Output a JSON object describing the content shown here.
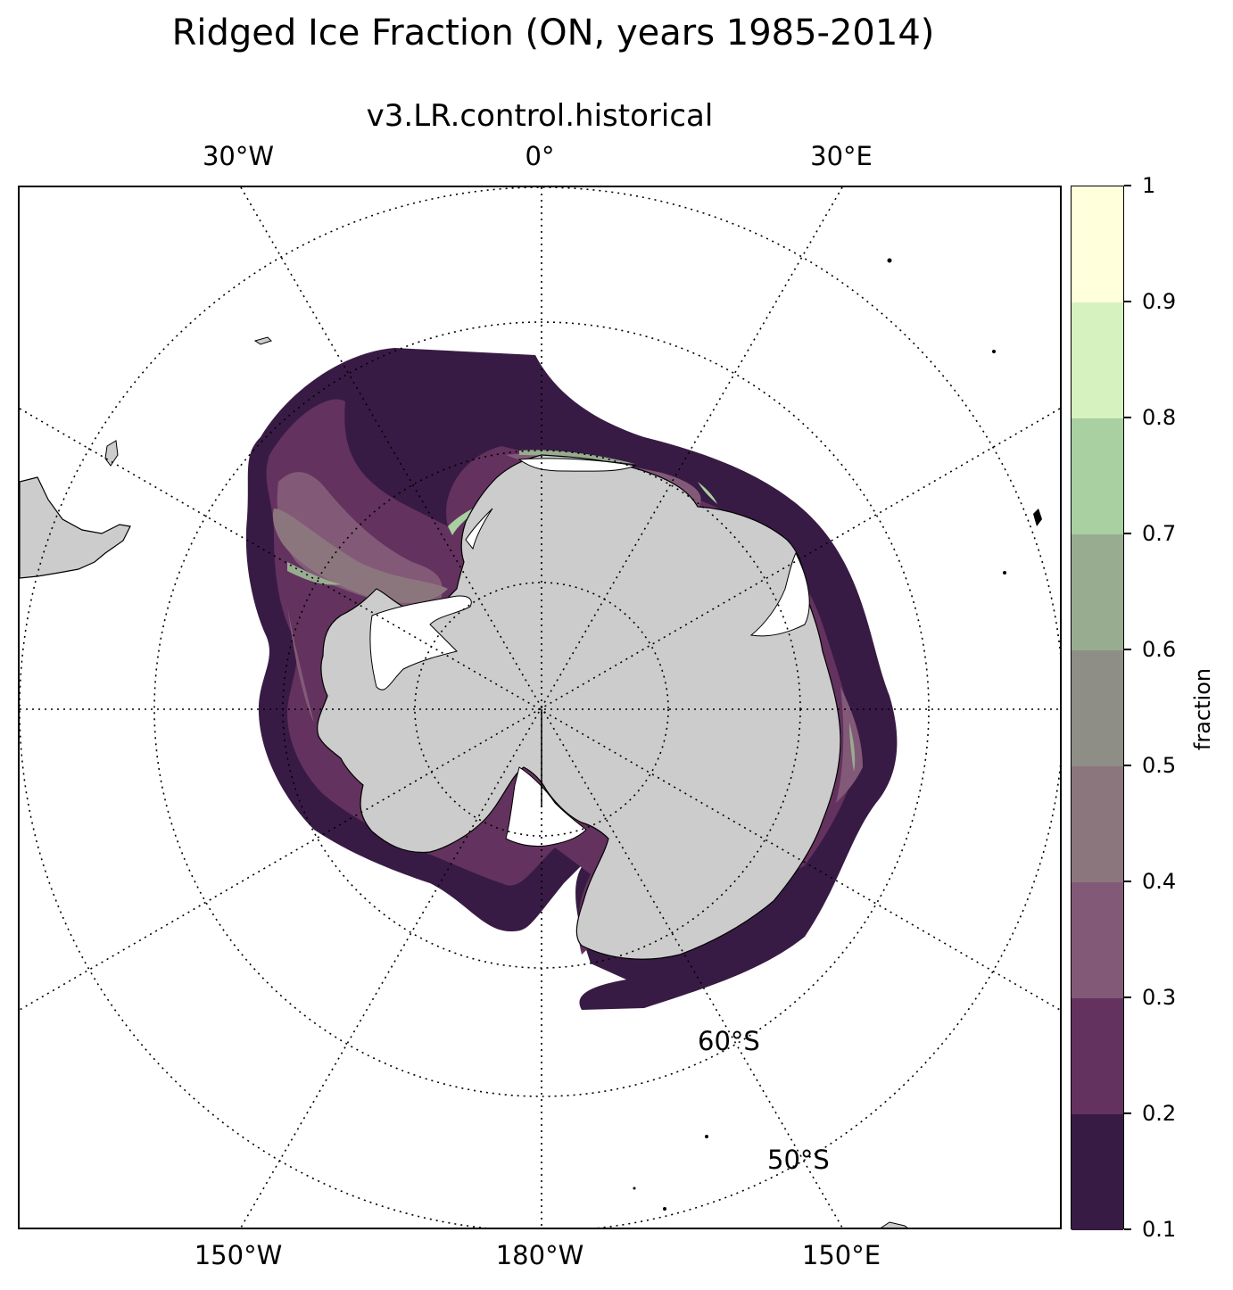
{
  "title": "Ridged Ice Fraction (ON, years 1985-2014)",
  "subtitle": "v3.LR.control.historical",
  "map": {
    "projection": "South Polar Stereographic",
    "top_longitude_labels": [
      "30°W",
      "0°",
      "30°E"
    ],
    "bottom_longitude_labels": [
      "150°W",
      "180°W",
      "150°E"
    ],
    "latitude_labels": [
      "60°S",
      "50°S"
    ],
    "gridlines": "dotted",
    "land_color": "#cccccc"
  },
  "colorbar": {
    "label": "fraction",
    "ticks": [
      "0.1",
      "0.2",
      "0.3",
      "0.4",
      "0.5",
      "0.6",
      "0.7",
      "0.8",
      "0.9",
      "1"
    ],
    "colors": [
      "#381b44",
      "#63325e",
      "#825a78",
      "#8c767e",
      "#8e8e86",
      "#98ad90",
      "#a8d0a0",
      "#d6f2bf",
      "#ffffdc"
    ]
  }
}
